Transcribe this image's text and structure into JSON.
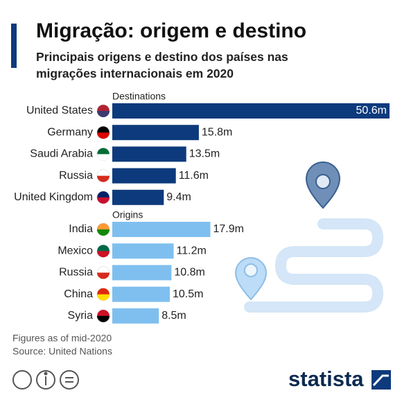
{
  "title": "Migração: origem e destino",
  "subtitle": "Principais origens e destino dos países nas migrações internacionais em 2020",
  "notes": [
    "Figures as of mid-2020",
    "Source: United Nations"
  ],
  "brand": "statista",
  "chart_data": [
    {
      "type": "bar",
      "orientation": "horizontal",
      "title": "Destinations",
      "color": "#0d3a7c",
      "categories": [
        "United States",
        "Germany",
        "Saudi Arabia",
        "Russia",
        "United Kingdom"
      ],
      "values": [
        50.6,
        15.8,
        13.5,
        11.6,
        9.4
      ],
      "value_labels": [
        "50.6m",
        "15.8m",
        "13.5m",
        "11.6m",
        "9.4m"
      ]
    },
    {
      "type": "bar",
      "orientation": "horizontal",
      "title": "Origins",
      "color": "#7fbfef",
      "categories": [
        "India",
        "Mexico",
        "Russia",
        "China",
        "Syria"
      ],
      "values": [
        17.9,
        11.2,
        10.8,
        10.5,
        8.5
      ],
      "value_labels": [
        "17.9m",
        "11.2m",
        "10.8m",
        "10.5m",
        "8.5m"
      ]
    }
  ]
}
